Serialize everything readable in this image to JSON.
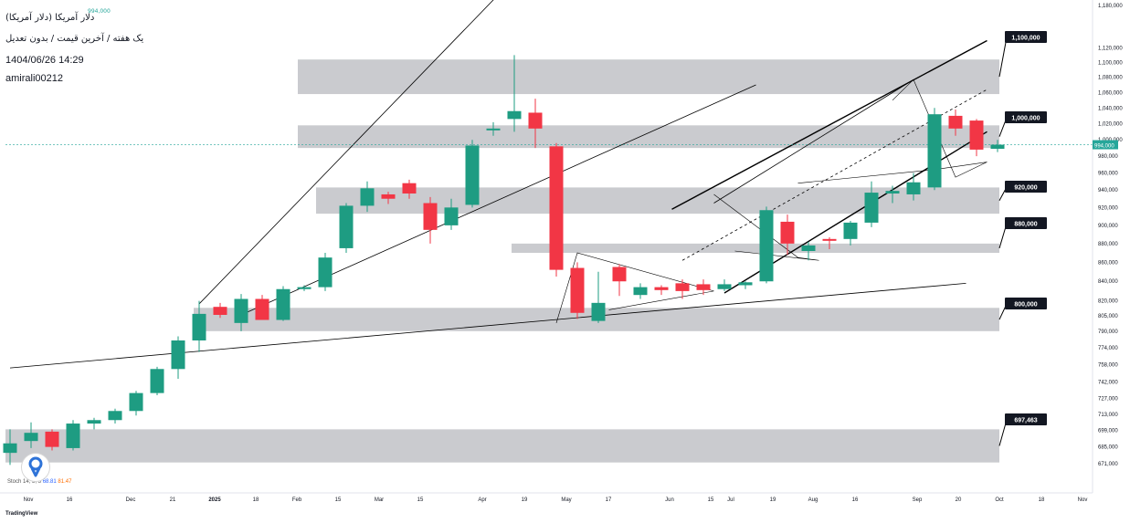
{
  "header": {
    "title": "دلار آمریکا (دلار آمریکا)",
    "subtitle": "یک هفته / آخرین قیمت / بدون تعدیل",
    "date": "1404/06/26 14:29",
    "user": "amirali00212",
    "ohlc_legend": "994,000"
  },
  "oscillator": {
    "label": "Stoch",
    "params": "14, 3, 3",
    "k": "68.81",
    "d": "81.47"
  },
  "branding": {
    "tradingview": "TradingView"
  },
  "colors": {
    "up": "#1e9c82",
    "down": "#f23645",
    "zone": "#c7c8cc",
    "line": "#000000",
    "price": "#26a69a"
  },
  "chart_data": {
    "type": "candlestick",
    "interval": "1W",
    "y_scale": "log",
    "ylim": [
      665000,
      1200000
    ],
    "y_ticks": [
      "1,180,000",
      "1,120,000",
      "1,100,000",
      "1,080,000",
      "1,060,000",
      "1,040,000",
      "1,020,000",
      "1,000,000",
      "980,000",
      "960,000",
      "940,000",
      "920,000",
      "900,000",
      "880,000",
      "860,000",
      "840,000",
      "820,000",
      "805,000",
      "790,000",
      "774,000",
      "758,000",
      "742,000",
      "727,000",
      "713,000",
      "699,000",
      "685,000",
      "671,000"
    ],
    "y_tick_values": [
      1180000,
      1120000,
      1100000,
      1080000,
      1060000,
      1040000,
      1020000,
      1000000,
      980000,
      960000,
      940000,
      920000,
      900000,
      880000,
      860000,
      840000,
      820000,
      805000,
      790000,
      774000,
      758000,
      742000,
      727000,
      713000,
      699000,
      685000,
      671000
    ],
    "x_ticks": [
      "Nov",
      "16",
      "Dec",
      "21",
      "2025",
      "18",
      "Feb",
      "15",
      "Mar",
      "15",
      "Apr",
      "19",
      "May",
      "17",
      "Jun",
      "15",
      "Jul",
      "19",
      "Aug",
      "16",
      "Sep",
      "20",
      "Oct",
      "18",
      "Nov"
    ],
    "x_tick_bold": [
      "2025"
    ],
    "candles": [
      {
        "o": 680000,
        "h": 700000,
        "l": 670000,
        "c": 688000
      },
      {
        "o": 690000,
        "h": 706000,
        "l": 684000,
        "c": 697000
      },
      {
        "o": 698000,
        "h": 700000,
        "l": 682000,
        "c": 685000
      },
      {
        "o": 684000,
        "h": 708000,
        "l": 682000,
        "c": 705000
      },
      {
        "o": 705000,
        "h": 710000,
        "l": 700000,
        "c": 708000
      },
      {
        "o": 708000,
        "h": 718000,
        "l": 705000,
        "c": 716000
      },
      {
        "o": 716000,
        "h": 734000,
        "l": 712000,
        "c": 732000
      },
      {
        "o": 732000,
        "h": 756000,
        "l": 730000,
        "c": 754000
      },
      {
        "o": 754000,
        "h": 785000,
        "l": 745000,
        "c": 781000
      },
      {
        "o": 781000,
        "h": 820000,
        "l": 770000,
        "c": 807000
      },
      {
        "o": 814000,
        "h": 818000,
        "l": 803000,
        "c": 806000
      },
      {
        "o": 798000,
        "h": 827000,
        "l": 790000,
        "c": 822000
      },
      {
        "o": 822000,
        "h": 826000,
        "l": 802000,
        "c": 801000
      },
      {
        "o": 801000,
        "h": 835000,
        "l": 800000,
        "c": 832000
      },
      {
        "o": 832000,
        "h": 836000,
        "l": 830000,
        "c": 834000
      },
      {
        "o": 834000,
        "h": 870000,
        "l": 830000,
        "c": 865000
      },
      {
        "o": 875000,
        "h": 925000,
        "l": 870000,
        "c": 922000
      },
      {
        "o": 922000,
        "h": 950000,
        "l": 915000,
        "c": 942000
      },
      {
        "o": 935000,
        "h": 938000,
        "l": 924000,
        "c": 930000
      },
      {
        "o": 948000,
        "h": 952000,
        "l": 930000,
        "c": 936000
      },
      {
        "o": 925000,
        "h": 932000,
        "l": 880000,
        "c": 895000
      },
      {
        "o": 900000,
        "h": 930000,
        "l": 895000,
        "c": 920000
      },
      {
        "o": 923000,
        "h": 1000000,
        "l": 920000,
        "c": 993000
      },
      {
        "o": 1012000,
        "h": 1022000,
        "l": 1005000,
        "c": 1014000
      },
      {
        "o": 1026000,
        "h": 1110000,
        "l": 1010000,
        "c": 1036000
      },
      {
        "o": 1034000,
        "h": 1052000,
        "l": 990000,
        "c": 1014000
      },
      {
        "o": 992000,
        "h": 996000,
        "l": 845000,
        "c": 852000
      },
      {
        "o": 854000,
        "h": 860000,
        "l": 802000,
        "c": 808000
      },
      {
        "o": 800000,
        "h": 850000,
        "l": 798000,
        "c": 818000
      },
      {
        "o": 855000,
        "h": 858000,
        "l": 825000,
        "c": 840000
      },
      {
        "o": 826000,
        "h": 838000,
        "l": 822000,
        "c": 834000
      },
      {
        "o": 834000,
        "h": 836000,
        "l": 826000,
        "c": 831000
      },
      {
        "o": 838000,
        "h": 842000,
        "l": 822000,
        "c": 830000
      },
      {
        "o": 837000,
        "h": 842000,
        "l": 826000,
        "c": 831000
      },
      {
        "o": 832000,
        "h": 842000,
        "l": 830000,
        "c": 837000
      },
      {
        "o": 836000,
        "h": 840000,
        "l": 832000,
        "c": 839000
      },
      {
        "o": 840000,
        "h": 921000,
        "l": 838000,
        "c": 917000
      },
      {
        "o": 904000,
        "h": 912000,
        "l": 868000,
        "c": 880000
      },
      {
        "o": 872000,
        "h": 882000,
        "l": 862000,
        "c": 878000
      },
      {
        "o": 885000,
        "h": 887000,
        "l": 874000,
        "c": 883000
      },
      {
        "o": 885000,
        "h": 905000,
        "l": 878000,
        "c": 903000
      },
      {
        "o": 903000,
        "h": 950000,
        "l": 898000,
        "c": 937000
      },
      {
        "o": 936000,
        "h": 945000,
        "l": 925000,
        "c": 939000
      },
      {
        "o": 935000,
        "h": 960000,
        "l": 928000,
        "c": 949000
      },
      {
        "o": 943000,
        "h": 1040000,
        "l": 940000,
        "c": 1032000
      },
      {
        "o": 1030000,
        "h": 1038000,
        "l": 1005000,
        "c": 1014000
      },
      {
        "o": 1024000,
        "h": 1026000,
        "l": 980000,
        "c": 988000
      },
      {
        "o": 989000,
        "h": 1000000,
        "l": 985000,
        "c": 994000
      }
    ],
    "zones": [
      {
        "from": 1058000,
        "to": 1104000
      },
      {
        "from": 990000,
        "to": 1018000
      },
      {
        "from": 913000,
        "to": 943000
      },
      {
        "from": 870000,
        "to": 880000
      },
      {
        "from": 790000,
        "to": 813000
      },
      {
        "from": 672000,
        "to": 700000
      }
    ],
    "zone_labels": [
      {
        "text": "1,100,000",
        "value": 1100000
      },
      {
        "text": "1,000,000",
        "value": 1000000
      },
      {
        "text": "920,000",
        "value": 920000
      },
      {
        "text": "880,000",
        "value": 880000
      },
      {
        "text": "800,000",
        "value": 800000
      },
      {
        "text": "697,463",
        "value": 697463
      }
    ],
    "current_price": {
      "text": "994,000",
      "value": 994000
    },
    "trendlines": [
      {
        "x1": 0.0,
        "y1": 755000,
        "x2": 45.5,
        "y2": 838000
      },
      {
        "x1": 9.0,
        "y1": 817000,
        "x2": 24.9,
        "y2": 1250000
      },
      {
        "x1": 11.0,
        "y1": 806000,
        "x2": 35.5,
        "y2": 1070000
      },
      {
        "x1": 31.5,
        "y1": 918000,
        "x2": 46.5,
        "y2": 1130000
      },
      {
        "x1": 34.0,
        "y1": 828000,
        "x2": 46.5,
        "y2": 1010000
      },
      {
        "x1": 32.0,
        "y1": 862000,
        "x2": 46.5,
        "y2": 1064000
      },
      {
        "x1": 33.5,
        "y1": 925000,
        "x2": 43.0,
        "y2": 1077000
      }
    ],
    "drawn_patterns": [
      [
        {
          "x": 26.0,
          "y": 798000
        },
        {
          "x": 27.0,
          "y": 870000
        },
        {
          "x": 33.5,
          "y": 830000
        },
        {
          "x": 28.5,
          "y": 811000
        }
      ],
      [
        {
          "x": 33.5,
          "y": 935000
        },
        {
          "x": 37.5,
          "y": 865000
        },
        {
          "x": 38.5,
          "y": 862000
        },
        {
          "x": 34.5,
          "y": 872000
        }
      ],
      [
        {
          "x": 37.5,
          "y": 948000
        },
        {
          "x": 44.0,
          "y": 964000
        },
        {
          "x": 46.5,
          "y": 973000
        },
        {
          "x": 45.0,
          "y": 955000
        },
        {
          "x": 43.0,
          "y": 1077000
        },
        {
          "x": 42.0,
          "y": 1050000
        }
      ]
    ]
  }
}
